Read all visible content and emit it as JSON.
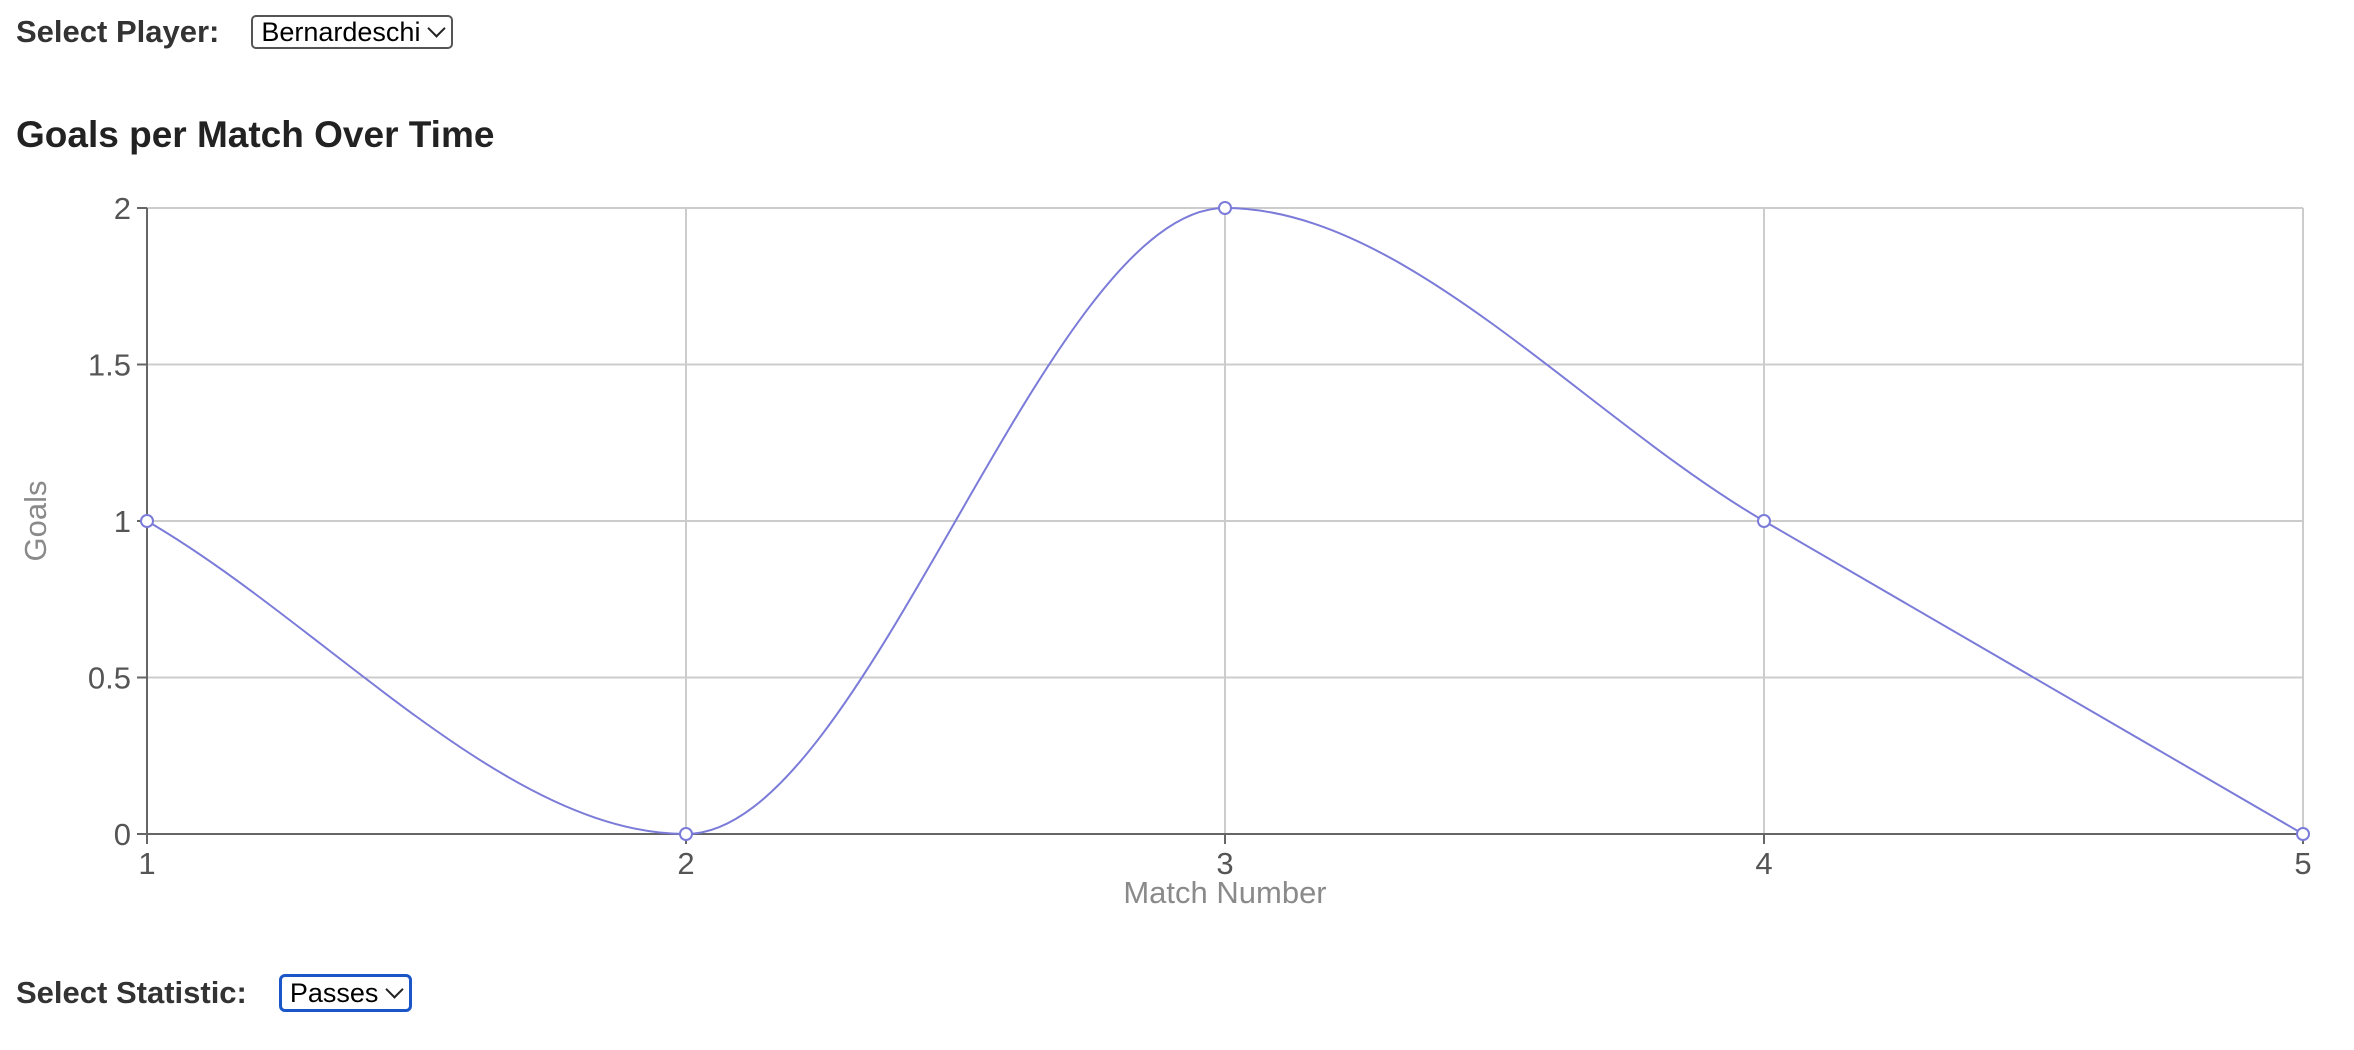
{
  "player_control": {
    "label": "Select Player:",
    "selected": "Bernardeschi"
  },
  "stat_control": {
    "label": "Select Statistic:",
    "selected": "Passes"
  },
  "chart_data": {
    "type": "line",
    "title": "Goals per Match Over Time",
    "xlabel": "Match Number",
    "ylabel": "Goals",
    "x": [
      1,
      2,
      3,
      4,
      5
    ],
    "series": [
      {
        "values": [
          1,
          0,
          2,
          1,
          0
        ],
        "color": "#7b7bd9"
      }
    ],
    "xlim": [
      1,
      5
    ],
    "ylim": [
      0,
      2
    ],
    "x_ticks": [
      "1",
      "2",
      "3",
      "4",
      "5"
    ],
    "y_ticks": [
      "0",
      "0.5",
      "1",
      "1.5",
      "2"
    ],
    "grid": true,
    "curve": "smooth"
  }
}
